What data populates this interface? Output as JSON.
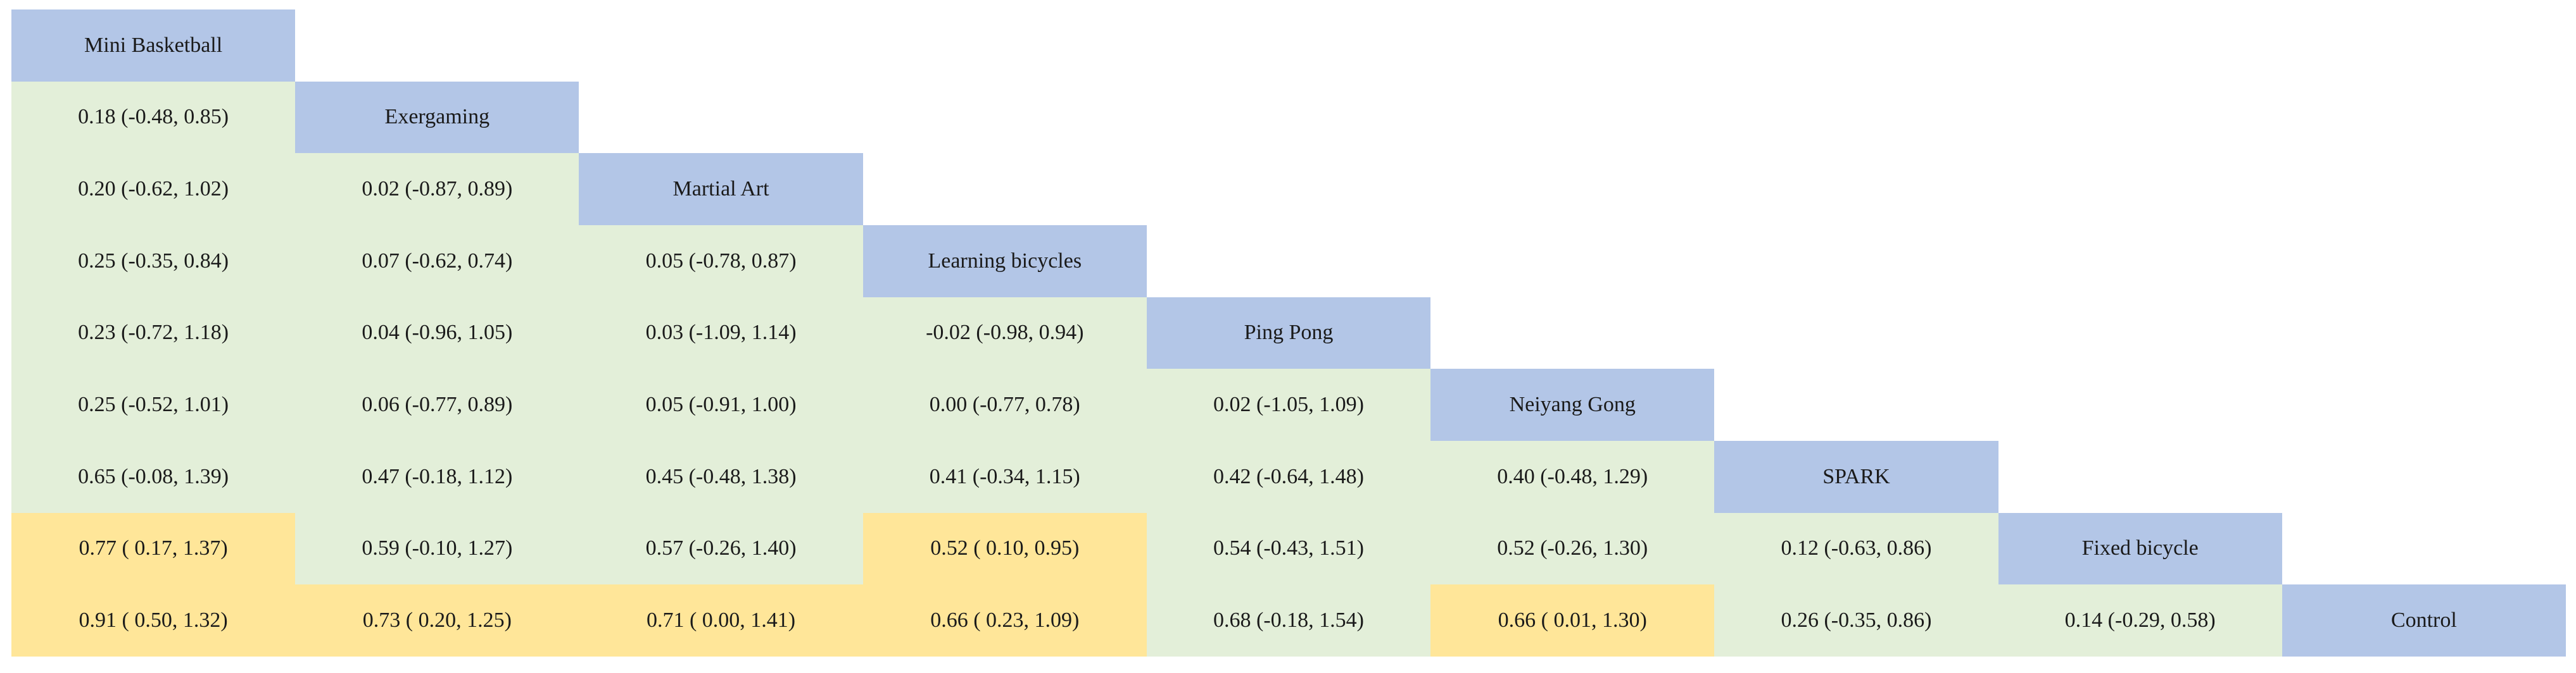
{
  "treatments": [
    "Mini Basketball",
    "Exergaming",
    "Martial Art",
    "Learning bicycles",
    "Ping Pong",
    "Neiyang Gong",
    "SPARK",
    "Fixed bicycle",
    "Control"
  ],
  "rows": [
    [],
    [
      {
        "text": "0.18 (-0.48, 0.85)",
        "significant": false
      }
    ],
    [
      {
        "text": "0.20 (-0.62, 1.02)",
        "significant": false
      },
      {
        "text": "0.02 (-0.87, 0.89)",
        "significant": false
      }
    ],
    [
      {
        "text": "0.25 (-0.35, 0.84)",
        "significant": false
      },
      {
        "text": "0.07 (-0.62, 0.74)",
        "significant": false
      },
      {
        "text": "0.05 (-0.78, 0.87)",
        "significant": false
      }
    ],
    [
      {
        "text": "0.23 (-0.72, 1.18)",
        "significant": false
      },
      {
        "text": "0.04 (-0.96, 1.05)",
        "significant": false
      },
      {
        "text": "0.03 (-1.09, 1.14)",
        "significant": false
      },
      {
        "text": "-0.02 (-0.98, 0.94)",
        "significant": false
      }
    ],
    [
      {
        "text": "0.25 (-0.52, 1.01)",
        "significant": false
      },
      {
        "text": "0.06 (-0.77, 0.89)",
        "significant": false
      },
      {
        "text": "0.05 (-0.91, 1.00)",
        "significant": false
      },
      {
        "text": "0.00 (-0.77, 0.78)",
        "significant": false
      },
      {
        "text": "0.02 (-1.05, 1.09)",
        "significant": false
      }
    ],
    [
      {
        "text": "0.65 (-0.08, 1.39)",
        "significant": false
      },
      {
        "text": "0.47 (-0.18, 1.12)",
        "significant": false
      },
      {
        "text": "0.45 (-0.48, 1.38)",
        "significant": false
      },
      {
        "text": "0.41 (-0.34, 1.15)",
        "significant": false
      },
      {
        "text": "0.42 (-0.64, 1.48)",
        "significant": false
      },
      {
        "text": "0.40 (-0.48, 1.29)",
        "significant": false
      }
    ],
    [
      {
        "text": "0.77 ( 0.17, 1.37)",
        "significant": true
      },
      {
        "text": "0.59 (-0.10, 1.27)",
        "significant": false
      },
      {
        "text": "0.57 (-0.26, 1.40)",
        "significant": false
      },
      {
        "text": "0.52 ( 0.10, 0.95)",
        "significant": true
      },
      {
        "text": "0.54 (-0.43, 1.51)",
        "significant": false
      },
      {
        "text": "0.52 (-0.26, 1.30)",
        "significant": false
      },
      {
        "text": "0.12 (-0.63, 0.86)",
        "significant": false
      }
    ],
    [
      {
        "text": "0.91 ( 0.50, 1.32)",
        "significant": true
      },
      {
        "text": "0.73 ( 0.20, 1.25)",
        "significant": true
      },
      {
        "text": "0.71 ( 0.00, 1.41)",
        "significant": true
      },
      {
        "text": "0.66 ( 0.23, 1.09)",
        "significant": true
      },
      {
        "text": "0.68 (-0.18, 1.54)",
        "significant": false
      },
      {
        "text": "0.66 ( 0.01, 1.30)",
        "significant": true
      },
      {
        "text": "0.26 (-0.35, 0.86)",
        "significant": false
      },
      {
        "text": "0.14 (-0.29, 0.58)",
        "significant": false
      }
    ]
  ],
  "colors": {
    "header": "#b3c6e7",
    "not_significant": "#e3efd9",
    "significant": "#ffe699"
  }
}
